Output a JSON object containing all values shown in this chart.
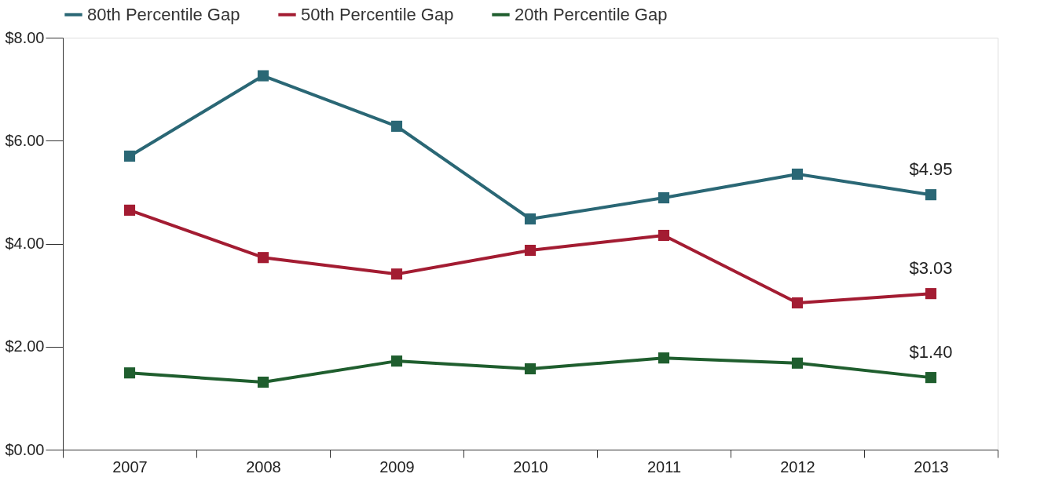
{
  "chart_data": {
    "type": "line",
    "categories": [
      "2007",
      "2008",
      "2009",
      "2010",
      "2011",
      "2012",
      "2013"
    ],
    "series": [
      {
        "name": "80th Percentile Gap",
        "color": "#2a6775",
        "values": [
          5.7,
          7.26,
          6.28,
          4.48,
          4.89,
          5.35,
          4.95
        ],
        "value_labels": [
          null,
          null,
          null,
          null,
          null,
          null,
          "$4.95"
        ]
      },
      {
        "name": "50th Percentile Gap",
        "color": "#a31c32",
        "values": [
          4.65,
          3.73,
          3.41,
          3.87,
          4.16,
          2.85,
          3.03
        ],
        "value_labels": [
          null,
          null,
          null,
          null,
          null,
          null,
          "$3.03"
        ]
      },
      {
        "name": "20th Percentile Gap",
        "color": "#1f5e2e",
        "values": [
          1.49,
          1.31,
          1.72,
          1.57,
          1.78,
          1.68,
          1.4
        ],
        "value_labels": [
          null,
          null,
          null,
          null,
          null,
          null,
          "$1.40"
        ]
      }
    ],
    "ylim": [
      0,
      8
    ],
    "yticks": [
      {
        "value": 0,
        "label": "$0.00"
      },
      {
        "value": 2,
        "label": "$2.00"
      },
      {
        "value": 4,
        "label": "$4.00"
      },
      {
        "value": 6,
        "label": "$6.00"
      },
      {
        "value": 8,
        "label": "$8.00"
      }
    ],
    "grid": false,
    "legend": "top",
    "marker": "square",
    "line_style": "solid"
  }
}
